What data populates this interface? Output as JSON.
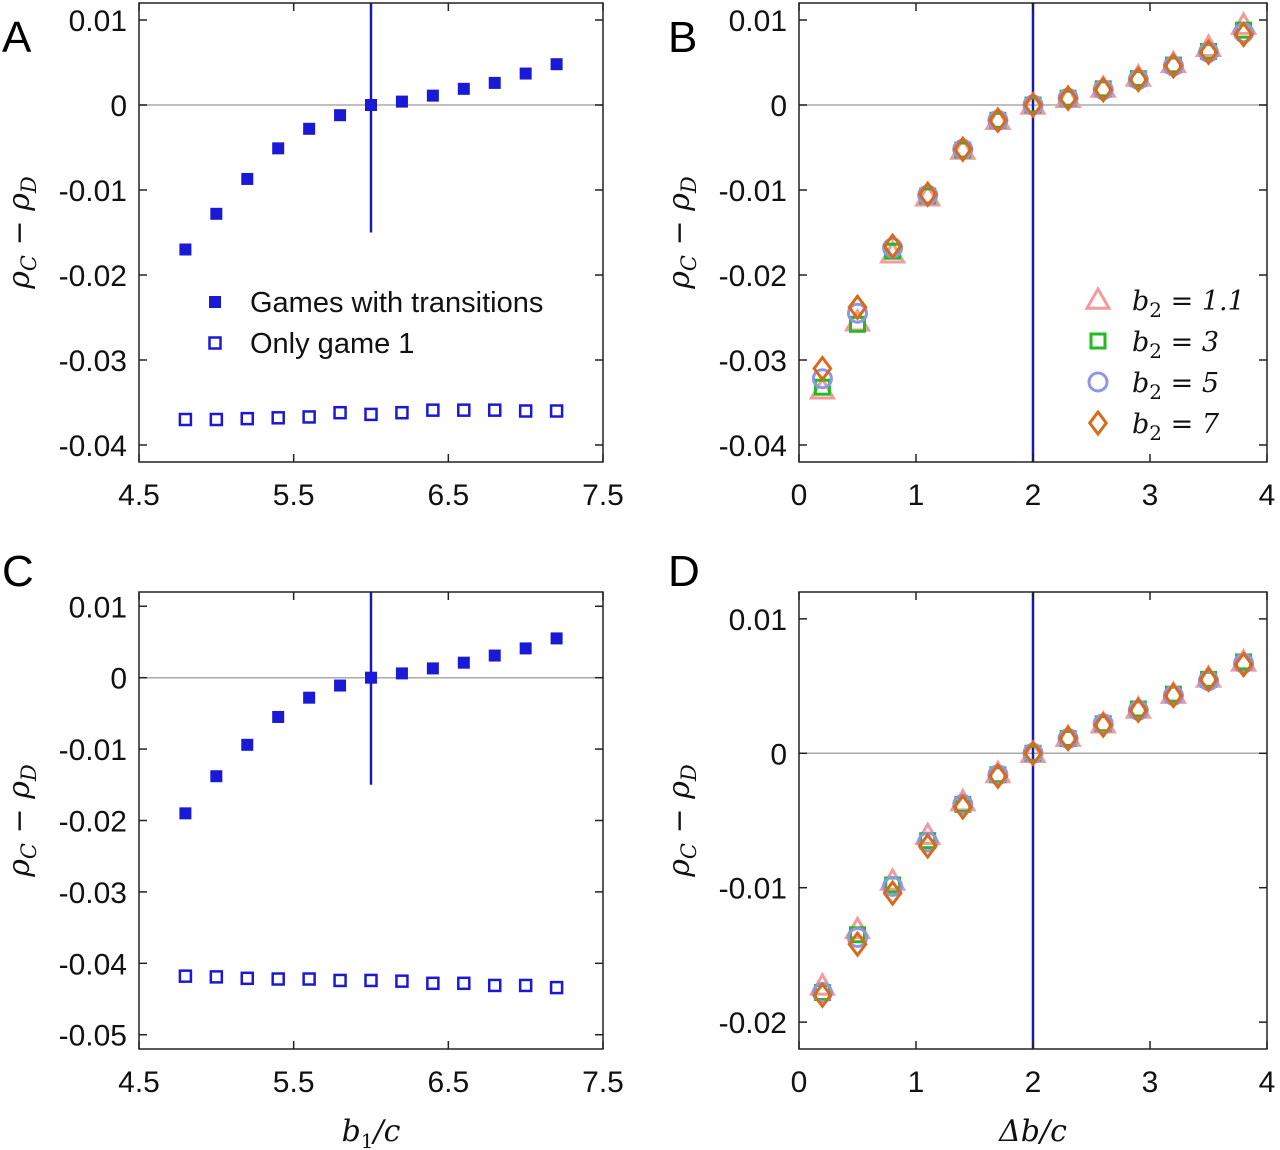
{
  "figure": {
    "panels": [
      {
        "id": "A",
        "label": "A"
      },
      {
        "id": "B",
        "label": "B"
      },
      {
        "id": "C",
        "label": "C"
      },
      {
        "id": "D",
        "label": "D"
      }
    ]
  },
  "chart_data": [
    {
      "panel": "A",
      "type": "scatter",
      "xlim": [
        4.5,
        7.5
      ],
      "ylim": [
        -0.042,
        0.012
      ],
      "xticks": [
        "4.5",
        "5.5",
        "6.5",
        "7.5"
      ],
      "xtick_values": [
        4.5,
        5.5,
        6.5,
        7.5
      ],
      "yticks": [
        "0.01",
        "0",
        "-0.01",
        "-0.02",
        "-0.03",
        "-0.04"
      ],
      "ytick_values": [
        0.01,
        0,
        -0.01,
        -0.02,
        -0.03,
        -0.04
      ],
      "xlabel": "",
      "ylabel": "ρC − ρD",
      "hline": 0,
      "vline": {
        "x": 6,
        "ymin": -0.015,
        "ymax": 0.012
      },
      "legend_position": "center-right",
      "colors": {
        "series": "#1a1ad6",
        "vline": "#1a1ab0",
        "hline": "#aaaaaa"
      },
      "series": [
        {
          "name": "Games with transitions",
          "marker": "filled-square",
          "x": [
            4.8,
            5.0,
            5.2,
            5.4,
            5.6,
            5.8,
            6.0,
            6.2,
            6.4,
            6.6,
            6.8,
            7.0,
            7.2
          ],
          "y": [
            -0.017,
            -0.0128,
            -0.0087,
            -0.0051,
            -0.0028,
            -0.0012,
            0.0,
            0.0004,
            0.0011,
            0.0019,
            0.0026,
            0.0037,
            0.0048
          ]
        },
        {
          "name": "Only game 1",
          "marker": "open-square",
          "x": [
            4.8,
            5.0,
            5.2,
            5.4,
            5.6,
            5.8,
            6.0,
            6.2,
            6.4,
            6.6,
            6.8,
            7.0,
            7.2
          ],
          "y": [
            -0.037,
            -0.037,
            -0.0369,
            -0.0368,
            -0.0367,
            -0.0362,
            -0.0364,
            -0.0362,
            -0.0359,
            -0.0359,
            -0.0359,
            -0.036,
            -0.036
          ]
        }
      ]
    },
    {
      "panel": "B",
      "type": "scatter",
      "xlim": [
        0,
        4
      ],
      "ylim": [
        -0.042,
        0.012
      ],
      "xticks": [
        "0",
        "1",
        "2",
        "3",
        "4"
      ],
      "xtick_values": [
        0,
        1,
        2,
        3,
        4
      ],
      "yticks": [
        "0.01",
        "0",
        "-0.01",
        "-0.02",
        "-0.03",
        "-0.04"
      ],
      "ytick_values": [
        0.01,
        0,
        -0.01,
        -0.02,
        -0.03,
        -0.04
      ],
      "xlabel": "",
      "ylabel": "ρC − ρD",
      "hline": 0,
      "vline": {
        "x": 2,
        "ymin": -0.042,
        "ymax": 0.012
      },
      "legend_position": "right",
      "colors": {
        "vline": "#1a1ab0",
        "hline": "#aaaaaa"
      },
      "x": [
        0.2,
        0.5,
        0.8,
        1.1,
        1.4,
        1.7,
        2.0,
        2.3,
        2.6,
        2.9,
        3.2,
        3.5,
        3.8
      ],
      "series": [
        {
          "name": "b2 = 1.1",
          "name_sym": "b",
          "name_sub": "2",
          "name_val": " = 1.1",
          "marker": "triangle",
          "color": "#f39a9a",
          "y": [
            -0.0335,
            -0.0255,
            -0.0175,
            -0.0108,
            -0.0053,
            -0.0018,
            0.0,
            0.0008,
            0.002,
            0.0033,
            0.0049,
            0.0068,
            0.0094
          ]
        },
        {
          "name": "b2 = 3",
          "name_sym": "b",
          "name_sub": "2",
          "name_val": " = 3",
          "marker": "square",
          "color": "#22bb22",
          "y": [
            -0.0332,
            -0.0258,
            -0.0172,
            -0.0107,
            -0.0053,
            -0.0018,
            0.0,
            0.0008,
            0.0019,
            0.0031,
            0.0047,
            0.0063,
            0.0088
          ]
        },
        {
          "name": "b2 = 5",
          "name_sym": "b",
          "name_sub": "2",
          "name_val": " = 5",
          "marker": "circle",
          "color": "#8f96e8",
          "y": [
            -0.0322,
            -0.0245,
            -0.0168,
            -0.0106,
            -0.0052,
            -0.0018,
            0.0,
            0.0008,
            0.0018,
            0.003,
            0.0046,
            0.0062,
            0.0085
          ]
        },
        {
          "name": "b2 = 7",
          "name_sym": "b",
          "name_sub": "2",
          "name_val": " = 7",
          "marker": "diamond",
          "color": "#d96a1a",
          "y": [
            -0.031,
            -0.0238,
            -0.0166,
            -0.0105,
            -0.0052,
            -0.0018,
            0.0,
            0.0008,
            0.0018,
            0.003,
            0.0046,
            0.0062,
            0.0083
          ]
        }
      ]
    },
    {
      "panel": "C",
      "type": "scatter",
      "xlim": [
        4.5,
        7.5
      ],
      "ylim": [
        -0.052,
        0.012
      ],
      "xticks": [
        "4.5",
        "5.5",
        "6.5",
        "7.5"
      ],
      "xtick_values": [
        4.5,
        5.5,
        6.5,
        7.5
      ],
      "yticks": [
        "0.01",
        "0",
        "-0.01",
        "-0.02",
        "-0.03",
        "-0.04",
        "-0.05"
      ],
      "ytick_values": [
        0.01,
        0,
        -0.01,
        -0.02,
        -0.03,
        -0.04,
        -0.05
      ],
      "xlabel": "b1/c",
      "xlabel_sym": "b",
      "xlabel_sub": "1",
      "xlabel_rest": "/c",
      "ylabel": "ρC − ρD",
      "hline": 0,
      "vline": {
        "x": 6,
        "ymin": -0.015,
        "ymax": 0.012
      },
      "colors": {
        "series": "#1a1ad6",
        "vline": "#1a1ab0",
        "hline": "#aaaaaa"
      },
      "series": [
        {
          "name": "Games with transitions",
          "marker": "filled-square",
          "x": [
            4.8,
            5.0,
            5.2,
            5.4,
            5.6,
            5.8,
            6.0,
            6.2,
            6.4,
            6.6,
            6.8,
            7.0,
            7.2
          ],
          "y": [
            -0.019,
            -0.0138,
            -0.0094,
            -0.0055,
            -0.0028,
            -0.0011,
            0.0,
            0.0006,
            0.0013,
            0.0021,
            0.0031,
            0.0041,
            0.0055
          ]
        },
        {
          "name": "Only game 1",
          "marker": "open-square",
          "x": [
            4.8,
            5.0,
            5.2,
            5.4,
            5.6,
            5.8,
            6.0,
            6.2,
            6.4,
            6.6,
            6.8,
            7.0,
            7.2
          ],
          "y": [
            -0.0418,
            -0.0419,
            -0.0421,
            -0.0422,
            -0.0422,
            -0.0424,
            -0.0424,
            -0.0425,
            -0.0428,
            -0.0428,
            -0.0431,
            -0.0431,
            -0.0434
          ]
        }
      ]
    },
    {
      "panel": "D",
      "type": "scatter",
      "xlim": [
        0,
        4
      ],
      "ylim": [
        -0.022,
        0.012
      ],
      "xticks": [
        "0",
        "1",
        "2",
        "3",
        "4"
      ],
      "xtick_values": [
        0,
        1,
        2,
        3,
        4
      ],
      "yticks": [
        "0.01",
        "0",
        "-0.01",
        "-0.02"
      ],
      "ytick_values": [
        0.01,
        0,
        -0.01,
        -0.02
      ],
      "xlabel": "Δb/c",
      "xlabel_sym": "Δb",
      "xlabel_sub": "",
      "xlabel_rest": "/c",
      "ylabel": "ρC − ρD",
      "hline": 0,
      "vline": {
        "x": 2,
        "ymin": -0.022,
        "ymax": 0.012
      },
      "colors": {
        "vline": "#1a1ab0",
        "hline": "#aaaaaa"
      },
      "x": [
        0.2,
        0.5,
        0.8,
        1.1,
        1.4,
        1.7,
        2.0,
        2.3,
        2.6,
        2.9,
        3.2,
        3.5,
        3.8
      ],
      "series": [
        {
          "marker": "triangle",
          "color": "#f39a9a",
          "y": [
            -0.0173,
            -0.0131,
            -0.0095,
            -0.0061,
            -0.0036,
            -0.0015,
            0.0,
            0.0012,
            0.0022,
            0.0033,
            0.0044,
            0.0056,
            0.0068
          ]
        },
        {
          "marker": "square",
          "color": "#22bb22",
          "y": [
            -0.0178,
            -0.0135,
            -0.0098,
            -0.0065,
            -0.0038,
            -0.0016,
            0.0,
            0.0011,
            0.0022,
            0.0033,
            0.0044,
            0.0055,
            0.0068
          ]
        },
        {
          "marker": "circle",
          "color": "#8f96e8",
          "y": [
            -0.0178,
            -0.0137,
            -0.0099,
            -0.0066,
            -0.0038,
            -0.0016,
            0.0,
            0.0011,
            0.0022,
            0.0032,
            0.0043,
            0.0054,
            0.0067
          ]
        },
        {
          "marker": "diamond",
          "color": "#d96a1a",
          "y": [
            -0.018,
            -0.0142,
            -0.0104,
            -0.0069,
            -0.004,
            -0.0017,
            0.0,
            0.0011,
            0.0021,
            0.0032,
            0.0043,
            0.0055,
            0.0066
          ]
        }
      ]
    }
  ]
}
